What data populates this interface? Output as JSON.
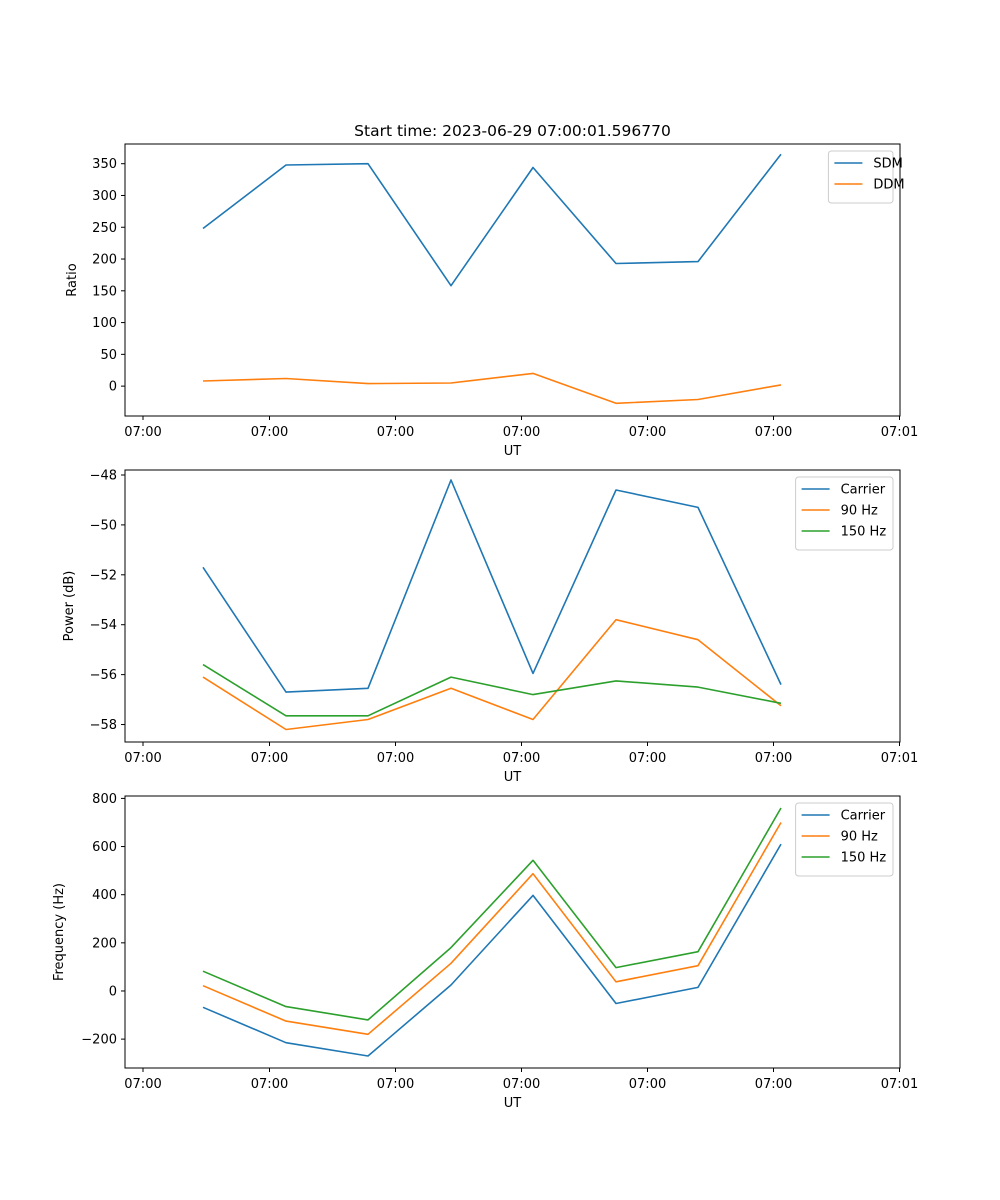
{
  "figure_title": "Start time: 2023-06-29 07:00:01.596770",
  "colors": {
    "blue": "#1f77b4",
    "orange": "#ff7f0e",
    "green": "#2ca02c"
  },
  "chart_data": [
    {
      "type": "line",
      "xlabel": "UT",
      "ylabel": "Ratio",
      "x_ticks": [
        "07:00",
        "07:00",
        "07:00",
        "07:00",
        "07:00",
        "07:00",
        "07:01"
      ],
      "ylim": [
        -47,
        381
      ],
      "y_ticks": [
        0,
        50,
        100,
        150,
        200,
        250,
        300,
        350
      ],
      "y_tick_labels": [
        "0",
        "50",
        "100",
        "150",
        "200",
        "250",
        "300",
        "350"
      ],
      "legend_position": "top-right",
      "series": [
        {
          "name": "SDM",
          "color": "#1f77b4",
          "values": [
            248,
            348,
            350,
            158,
            344,
            193,
            196,
            365
          ]
        },
        {
          "name": "DDM",
          "color": "#ff7f0e",
          "values": [
            8,
            12,
            4,
            5,
            20,
            -27,
            -21,
            2
          ]
        }
      ]
    },
    {
      "type": "line",
      "xlabel": "UT",
      "ylabel": "Power (dB)",
      "x_ticks": [
        "07:00",
        "07:00",
        "07:00",
        "07:00",
        "07:00",
        "07:00",
        "07:01"
      ],
      "ylim": [
        -58.7,
        -47.8
      ],
      "y_ticks": [
        -58,
        -56,
        -54,
        -52,
        -50,
        -48
      ],
      "y_tick_labels": [
        "−58",
        "−56",
        "−54",
        "−52",
        "−50",
        "−48"
      ],
      "legend_position": "top-right",
      "series": [
        {
          "name": "Carrier",
          "color": "#1f77b4",
          "values": [
            -51.7,
            -56.7,
            -56.55,
            -48.2,
            -55.95,
            -48.6,
            -49.3,
            -56.4
          ]
        },
        {
          "name": "90 Hz",
          "color": "#ff7f0e",
          "values": [
            -56.1,
            -58.2,
            -57.8,
            -56.55,
            -57.8,
            -53.8,
            -54.6,
            -57.25
          ]
        },
        {
          "name": "150 Hz",
          "color": "#2ca02c",
          "values": [
            -55.6,
            -57.65,
            -57.65,
            -56.1,
            -56.8,
            -56.25,
            -56.5,
            -57.15
          ]
        }
      ]
    },
    {
      "type": "line",
      "xlabel": "UT",
      "ylabel": "Frequency (Hz)",
      "x_ticks": [
        "07:00",
        "07:00",
        "07:00",
        "07:00",
        "07:00",
        "07:00",
        "07:01"
      ],
      "ylim": [
        -320,
        810
      ],
      "y_ticks": [
        -200,
        0,
        200,
        400,
        600,
        800
      ],
      "y_tick_labels": [
        "−200",
        "0",
        "200",
        "400",
        "600",
        "800"
      ],
      "legend_position": "top-right",
      "series": [
        {
          "name": "Carrier",
          "color": "#1f77b4",
          "values": [
            -68,
            -215,
            -270,
            25,
            397,
            -52,
            15,
            610
          ]
        },
        {
          "name": "90 Hz",
          "color": "#ff7f0e",
          "values": [
            22,
            -125,
            -180,
            115,
            487,
            38,
            105,
            700
          ]
        },
        {
          "name": "150 Hz",
          "color": "#2ca02c",
          "values": [
            82,
            -65,
            -120,
            180,
            543,
            97,
            163,
            760
          ]
        }
      ]
    }
  ]
}
